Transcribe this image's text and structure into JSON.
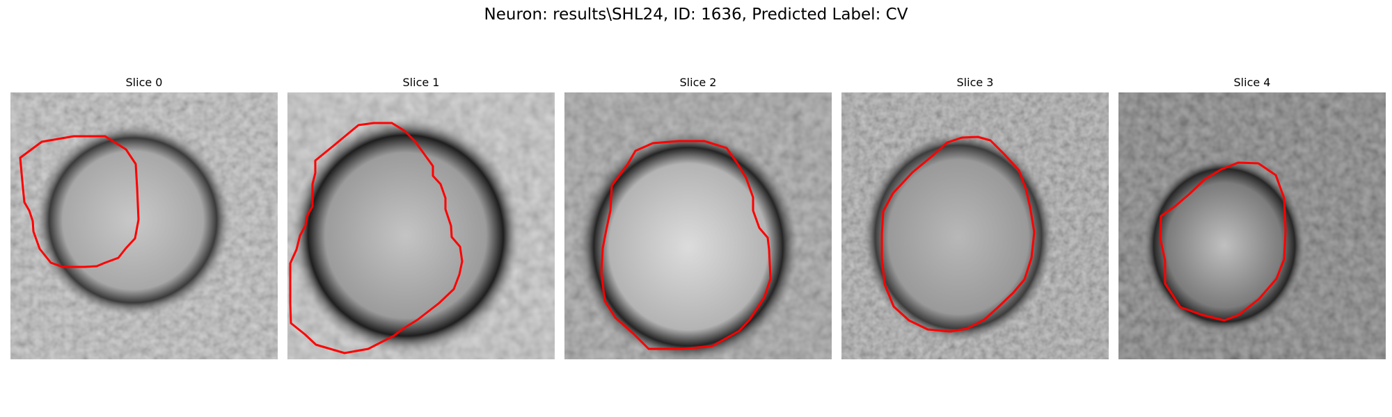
{
  "figure": {
    "title": "Neuron: results\\SHL24, ID: 1636, Predicted Label: CV"
  },
  "contour_color": "#ff0000",
  "panels": [
    {
      "title": "Slice 0",
      "contour": [
        [
          14,
          94
        ],
        [
          45,
          71
        ],
        [
          91,
          63
        ],
        [
          136,
          63
        ],
        [
          166,
          82
        ],
        [
          180,
          103
        ],
        [
          182,
          137
        ],
        [
          184,
          183
        ],
        [
          179,
          210
        ],
        [
          166,
          224
        ],
        [
          155,
          238
        ],
        [
          136,
          245
        ],
        [
          124,
          250
        ],
        [
          107,
          251
        ],
        [
          91,
          251
        ],
        [
          75,
          251
        ],
        [
          58,
          245
        ],
        [
          42,
          225
        ],
        [
          33,
          200
        ],
        [
          32,
          185
        ],
        [
          27,
          170
        ],
        [
          20,
          158
        ],
        [
          18,
          138
        ]
      ]
    },
    {
      "title": "Slice 1",
      "contour": [
        [
          40,
          98
        ],
        [
          67,
          76
        ],
        [
          102,
          47
        ],
        [
          124,
          44
        ],
        [
          150,
          44
        ],
        [
          168,
          55
        ],
        [
          183,
          70
        ],
        [
          196,
          88
        ],
        [
          209,
          106
        ],
        [
          209,
          120
        ],
        [
          220,
          132
        ],
        [
          227,
          152
        ],
        [
          227,
          168
        ],
        [
          235,
          192
        ],
        [
          236,
          208
        ],
        [
          248,
          222
        ],
        [
          251,
          243
        ],
        [
          247,
          262
        ],
        [
          239,
          283
        ],
        [
          218,
          303
        ],
        [
          187,
          327
        ],
        [
          166,
          340
        ],
        [
          153,
          350
        ],
        [
          116,
          369
        ],
        [
          82,
          375
        ],
        [
          41,
          363
        ],
        [
          25,
          348
        ],
        [
          5,
          332
        ],
        [
          4,
          304
        ],
        [
          4,
          264
        ],
        [
          4,
          246
        ],
        [
          13,
          226
        ],
        [
          18,
          206
        ],
        [
          26,
          191
        ],
        [
          28,
          178
        ],
        [
          36,
          164
        ],
        [
          36,
          132
        ],
        [
          40,
          116
        ]
      ]
    },
    {
      "title": "Slice 2",
      "contour": [
        [
          68,
          134
        ],
        [
          91,
          103
        ],
        [
          102,
          84
        ],
        [
          127,
          73
        ],
        [
          164,
          70
        ],
        [
          201,
          70
        ],
        [
          233,
          80
        ],
        [
          249,
          103
        ],
        [
          261,
          123
        ],
        [
          271,
          151
        ],
        [
          271,
          170
        ],
        [
          280,
          195
        ],
        [
          292,
          209
        ],
        [
          294,
          226
        ],
        [
          296,
          268
        ],
        [
          287,
          295
        ],
        [
          266,
          327
        ],
        [
          251,
          343
        ],
        [
          228,
          356
        ],
        [
          212,
          365
        ],
        [
          170,
          369
        ],
        [
          121,
          369
        ],
        [
          99,
          347
        ],
        [
          73,
          324
        ],
        [
          58,
          300
        ],
        [
          53,
          260
        ],
        [
          55,
          224
        ],
        [
          60,
          198
        ],
        [
          66,
          170
        ]
      ]
    },
    {
      "title": "Slice 3",
      "contour": [
        [
          74,
          145
        ],
        [
          102,
          115
        ],
        [
          131,
          91
        ],
        [
          152,
          72
        ],
        [
          173,
          65
        ],
        [
          196,
          64
        ],
        [
          214,
          69
        ],
        [
          234,
          89
        ],
        [
          255,
          112
        ],
        [
          265,
          139
        ],
        [
          271,
          165
        ],
        [
          277,
          201
        ],
        [
          273,
          238
        ],
        [
          263,
          269
        ],
        [
          247,
          288
        ],
        [
          224,
          310
        ],
        [
          205,
          327
        ],
        [
          180,
          340
        ],
        [
          156,
          344
        ],
        [
          124,
          341
        ],
        [
          97,
          328
        ],
        [
          75,
          308
        ],
        [
          62,
          276
        ],
        [
          58,
          238
        ],
        [
          58,
          204
        ],
        [
          60,
          171
        ]
      ]
    },
    {
      "title": "Slice 4",
      "contour": [
        [
          102,
          146
        ],
        [
          124,
          125
        ],
        [
          147,
          111
        ],
        [
          172,
          101
        ],
        [
          201,
          102
        ],
        [
          226,
          119
        ],
        [
          238,
          152
        ],
        [
          240,
          199
        ],
        [
          238,
          240
        ],
        [
          227,
          268
        ],
        [
          202,
          297
        ],
        [
          173,
          320
        ],
        [
          152,
          328
        ],
        [
          120,
          320
        ],
        [
          89,
          309
        ],
        [
          67,
          275
        ],
        [
          67,
          242
        ],
        [
          60,
          210
        ],
        [
          61,
          178
        ],
        [
          81,
          164
        ]
      ]
    }
  ]
}
